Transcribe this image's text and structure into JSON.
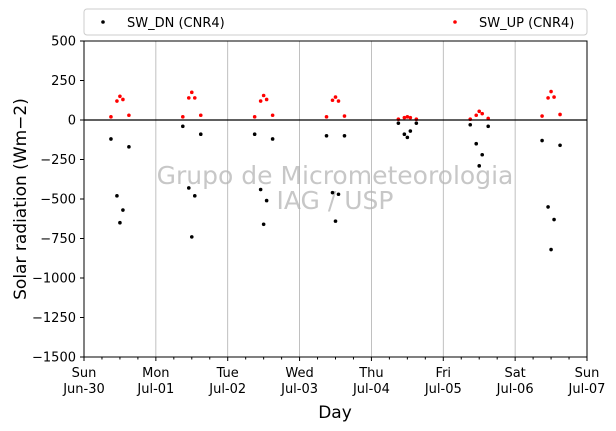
{
  "chart_data": {
    "type": "scatter",
    "xlabel": "Day",
    "ylabel": "Solar radiation (Wm−2)",
    "xlim": [
      "2024-06-30",
      "2024-07-07"
    ],
    "ylim": [
      -1500,
      500
    ],
    "yticks": [
      500,
      250,
      0,
      -250,
      -500,
      -750,
      -1000,
      -1250,
      -1500
    ],
    "xticks": [
      {
        "date": "2024-06-30",
        "day": "Sun",
        "date_label": "Jun-30"
      },
      {
        "date": "2024-07-01",
        "day": "Mon",
        "date_label": "Jul-01"
      },
      {
        "date": "2024-07-02",
        "day": "Tue",
        "date_label": "Jul-02"
      },
      {
        "date": "2024-07-03",
        "day": "Wed",
        "date_label": "Jul-03"
      },
      {
        "date": "2024-07-04",
        "day": "Thu",
        "date_label": "Jul-04"
      },
      {
        "date": "2024-07-05",
        "day": "Fri",
        "date_label": "Jul-05"
      },
      {
        "date": "2024-07-06",
        "day": "Sat",
        "date_label": "Jul-06"
      },
      {
        "date": "2024-07-07",
        "day": "Sun",
        "date_label": "Jul-07"
      }
    ],
    "grid": "vertical",
    "legend_position": "top",
    "zero_line": true,
    "watermark": [
      "Grupo de Micrometeorologia",
      "IAG / USP"
    ],
    "series": [
      {
        "name": "SW_DN (CNR4)",
        "color": "#000000",
        "values": [
          {
            "x": "2024-06-30 09:00",
            "y": -120
          },
          {
            "x": "2024-06-30 11:00",
            "y": -480
          },
          {
            "x": "2024-06-30 12:00",
            "y": -650
          },
          {
            "x": "2024-06-30 13:00",
            "y": -570
          },
          {
            "x": "2024-06-30 15:00",
            "y": -170
          },
          {
            "x": "2024-07-01 09:00",
            "y": -40
          },
          {
            "x": "2024-07-01 11:00",
            "y": -430
          },
          {
            "x": "2024-07-01 12:00",
            "y": -740
          },
          {
            "x": "2024-07-01 13:00",
            "y": -480
          },
          {
            "x": "2024-07-01 15:00",
            "y": -90
          },
          {
            "x": "2024-07-02 09:00",
            "y": -90
          },
          {
            "x": "2024-07-02 11:00",
            "y": -440
          },
          {
            "x": "2024-07-02 12:00",
            "y": -660
          },
          {
            "x": "2024-07-02 13:00",
            "y": -510
          },
          {
            "x": "2024-07-02 15:00",
            "y": -120
          },
          {
            "x": "2024-07-03 09:00",
            "y": -100
          },
          {
            "x": "2024-07-03 11:00",
            "y": -460
          },
          {
            "x": "2024-07-03 12:00",
            "y": -640
          },
          {
            "x": "2024-07-03 13:00",
            "y": -470
          },
          {
            "x": "2024-07-03 15:00",
            "y": -100
          },
          {
            "x": "2024-07-04 09:00",
            "y": -20
          },
          {
            "x": "2024-07-04 11:00",
            "y": -90
          },
          {
            "x": "2024-07-04 12:00",
            "y": -110
          },
          {
            "x": "2024-07-04 13:00",
            "y": -70
          },
          {
            "x": "2024-07-04 15:00",
            "y": -20
          },
          {
            "x": "2024-07-05 09:00",
            "y": -30
          },
          {
            "x": "2024-07-05 11:00",
            "y": -150
          },
          {
            "x": "2024-07-05 12:00",
            "y": -290
          },
          {
            "x": "2024-07-05 13:00",
            "y": -220
          },
          {
            "x": "2024-07-05 15:00",
            "y": -40
          },
          {
            "x": "2024-07-06 09:00",
            "y": -130
          },
          {
            "x": "2024-07-06 11:00",
            "y": -550
          },
          {
            "x": "2024-07-06 12:00",
            "y": -820
          },
          {
            "x": "2024-07-06 13:00",
            "y": -630
          },
          {
            "x": "2024-07-06 15:00",
            "y": -160
          }
        ]
      },
      {
        "name": "SW_UP (CNR4)",
        "color": "#ff0000",
        "values": [
          {
            "x": "2024-06-30 09:00",
            "y": 20
          },
          {
            "x": "2024-06-30 11:00",
            "y": 120
          },
          {
            "x": "2024-06-30 12:00",
            "y": 150
          },
          {
            "x": "2024-06-30 13:00",
            "y": 130
          },
          {
            "x": "2024-06-30 15:00",
            "y": 30
          },
          {
            "x": "2024-07-01 09:00",
            "y": 20
          },
          {
            "x": "2024-07-01 11:00",
            "y": 140
          },
          {
            "x": "2024-07-01 12:00",
            "y": 175
          },
          {
            "x": "2024-07-01 13:00",
            "y": 140
          },
          {
            "x": "2024-07-01 15:00",
            "y": 30
          },
          {
            "x": "2024-07-02 09:00",
            "y": 20
          },
          {
            "x": "2024-07-02 11:00",
            "y": 120
          },
          {
            "x": "2024-07-02 12:00",
            "y": 155
          },
          {
            "x": "2024-07-02 13:00",
            "y": 130
          },
          {
            "x": "2024-07-02 15:00",
            "y": 30
          },
          {
            "x": "2024-07-03 09:00",
            "y": 20
          },
          {
            "x": "2024-07-03 11:00",
            "y": 125
          },
          {
            "x": "2024-07-03 12:00",
            "y": 145
          },
          {
            "x": "2024-07-03 13:00",
            "y": 120
          },
          {
            "x": "2024-07-03 15:00",
            "y": 25
          },
          {
            "x": "2024-07-04 09:00",
            "y": 5
          },
          {
            "x": "2024-07-04 11:00",
            "y": 15
          },
          {
            "x": "2024-07-04 12:00",
            "y": 20
          },
          {
            "x": "2024-07-04 13:00",
            "y": 15
          },
          {
            "x": "2024-07-04 15:00",
            "y": 5
          },
          {
            "x": "2024-07-05 09:00",
            "y": 5
          },
          {
            "x": "2024-07-05 11:00",
            "y": 30
          },
          {
            "x": "2024-07-05 12:00",
            "y": 55
          },
          {
            "x": "2024-07-05 13:00",
            "y": 40
          },
          {
            "x": "2024-07-05 15:00",
            "y": 10
          },
          {
            "x": "2024-07-06 09:00",
            "y": 25
          },
          {
            "x": "2024-07-06 11:00",
            "y": 140
          },
          {
            "x": "2024-07-06 12:00",
            "y": 180
          },
          {
            "x": "2024-07-06 13:00",
            "y": 145
          },
          {
            "x": "2024-07-06 15:00",
            "y": 35
          }
        ]
      }
    ]
  }
}
